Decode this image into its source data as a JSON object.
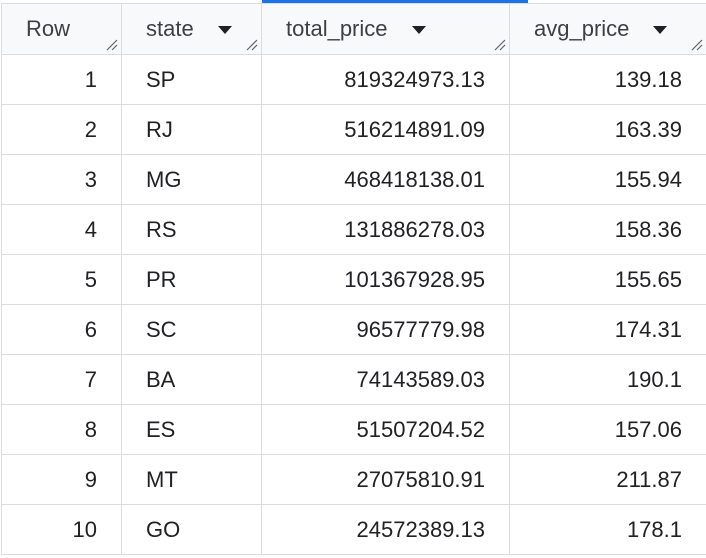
{
  "columns": [
    {
      "key": "row",
      "label": "Row",
      "sortable": false
    },
    {
      "key": "state",
      "label": "state",
      "sortable": true
    },
    {
      "key": "total_price",
      "label": "total_price",
      "sortable": true
    },
    {
      "key": "avg_price",
      "label": "avg_price",
      "sortable": true
    }
  ],
  "rows": [
    {
      "row": "1",
      "state": "SP",
      "total_price": "819324973.13",
      "avg_price": "139.18"
    },
    {
      "row": "2",
      "state": "RJ",
      "total_price": "516214891.09",
      "avg_price": "163.39"
    },
    {
      "row": "3",
      "state": "MG",
      "total_price": "468418138.01",
      "avg_price": "155.94"
    },
    {
      "row": "4",
      "state": "RS",
      "total_price": "131886278.03",
      "avg_price": "158.36"
    },
    {
      "row": "5",
      "state": "PR",
      "total_price": "101367928.95",
      "avg_price": "155.65"
    },
    {
      "row": "6",
      "state": "SC",
      "total_price": "96577779.98",
      "avg_price": "174.31"
    },
    {
      "row": "7",
      "state": "BA",
      "total_price": "74143589.03",
      "avg_price": "190.1"
    },
    {
      "row": "8",
      "state": "ES",
      "total_price": "51507204.52",
      "avg_price": "157.06"
    },
    {
      "row": "9",
      "state": "MT",
      "total_price": "27075810.91",
      "avg_price": "211.87"
    },
    {
      "row": "10",
      "state": "GO",
      "total_price": "24572389.13",
      "avg_price": "178.1"
    }
  ],
  "icons": {
    "sort": "caret-down-icon",
    "resize": "column-resize-icon"
  },
  "colors": {
    "header_bg": "#f8f9fa",
    "grid_line": "#dadce0",
    "accent": "#1a73e8",
    "text": "#202124"
  }
}
